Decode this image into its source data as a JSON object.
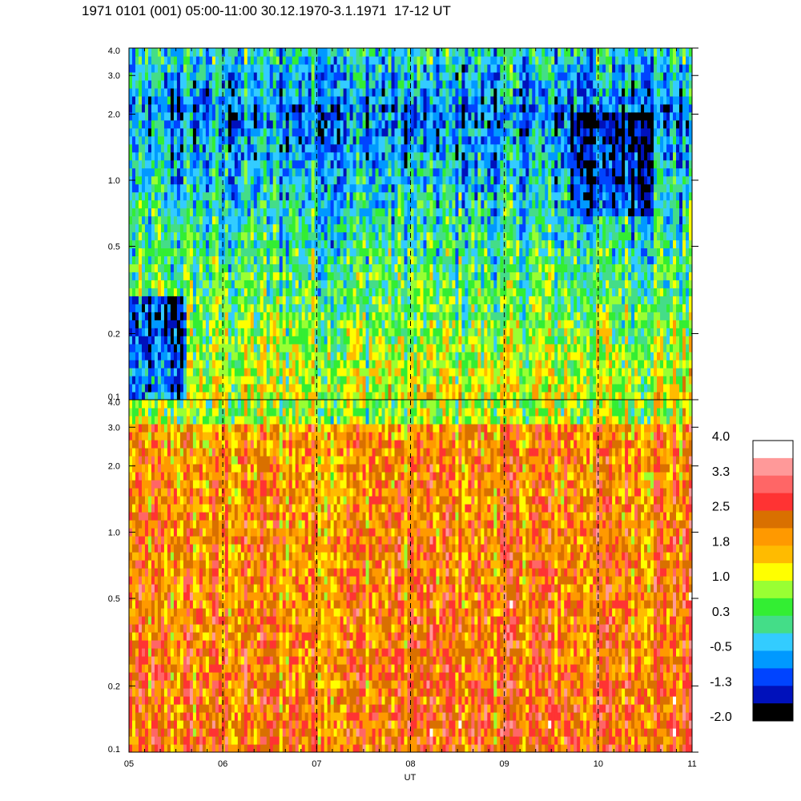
{
  "title": "1971 0101 (001) 05:00-11:00 30.12.1970-3.1.1971  17-12 UT",
  "chart_data": {
    "type": "heatmap",
    "xlabel": "UT",
    "x_ticks": [
      "05",
      "06",
      "07",
      "08",
      "09",
      "10",
      "11"
    ],
    "x_range": [
      5,
      11
    ],
    "y_scale": "log",
    "y_range": [
      0.1,
      4.0
    ],
    "y_ticks": [
      "0.1",
      "0.2",
      "0.5",
      "1.0",
      "2.0",
      "3.0",
      "4.0"
    ],
    "y_tick_values": [
      0.1,
      0.2,
      0.5,
      1.0,
      2.0,
      3.0,
      4.0
    ],
    "vertical_dashed_lines_at": [
      6,
      7,
      8,
      9,
      10
    ],
    "panels": [
      {
        "name": "upper",
        "dominant_level": "low"
      },
      {
        "name": "lower",
        "dominant_level": "high"
      }
    ],
    "colorbar": {
      "range": [
        -2.0,
        4.0
      ],
      "labels": [
        "4.0",
        "3.3",
        "2.5",
        "1.8",
        "1.0",
        "0.3",
        "-0.5",
        "-1.3",
        "-2.0"
      ],
      "colors_top_to_bottom": [
        "#ffffff",
        "#ff9999",
        "#ff6666",
        "#ff3333",
        "#d97000",
        "#ff9900",
        "#ffbb00",
        "#ffff00",
        "#99ff33",
        "#33ee33",
        "#44dd88",
        "#33ccff",
        "#0099ff",
        "#0044ff",
        "#0011bb",
        "#000000"
      ]
    }
  }
}
